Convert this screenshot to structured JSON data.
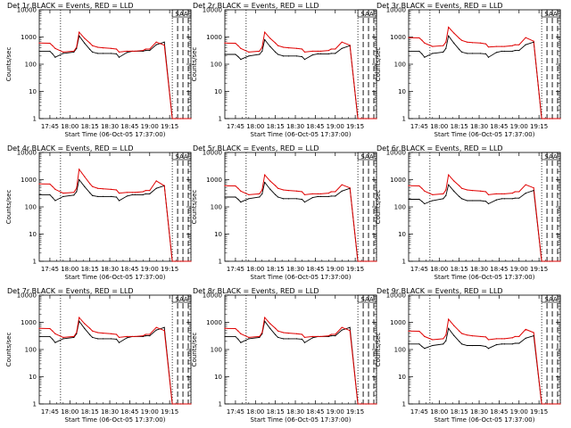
{
  "chart_data": {
    "type": "line",
    "y_scale": "log",
    "ylim": [
      1,
      10000
    ],
    "y_ticks": [
      "1",
      "10",
      "100",
      "1000",
      "10000"
    ],
    "x_ticks": [
      "17:45",
      "18:00",
      "18:15",
      "18:30",
      "18:45",
      "19:00",
      "19:15"
    ],
    "x_range_min": [
      -8,
      106
    ],
    "xlabel": "Start Time (06-Oct-05 17:37:00)",
    "ylabel": "Counts/sec",
    "annotation": "SAA",
    "colors": {
      "events": "#000000",
      "lld": "#e00000"
    },
    "series_names": [
      "Events",
      "LLD"
    ],
    "sample_x_min": [
      -8,
      0,
      2,
      4,
      10,
      18,
      20,
      22,
      26,
      30,
      32,
      36,
      40,
      46,
      50,
      52,
      58,
      62,
      64,
      70,
      72,
      75,
      80,
      86,
      92,
      94,
      96,
      98,
      100,
      106
    ],
    "panels": [
      {
        "title": "Det 1r  BLACK = Events, RED = LLD",
        "events": [
          300,
          300,
          240,
          180,
          250,
          280,
          380,
          1100,
          600,
          350,
          280,
          250,
          250,
          250,
          240,
          180,
          270,
          300,
          300,
          300,
          320,
          320,
          520,
          650,
          1,
          1,
          1,
          1,
          1,
          1
        ],
        "lld": [
          600,
          590,
          480,
          380,
          280,
          300,
          420,
          1500,
          900,
          600,
          480,
          420,
          400,
          380,
          360,
          280,
          300,
          300,
          300,
          320,
          360,
          360,
          650,
          500,
          1,
          1,
          1,
          1,
          1,
          1
        ]
      },
      {
        "title": "Det 2r  BLACK = Events, RED = LLD",
        "events": [
          230,
          230,
          190,
          150,
          200,
          230,
          300,
          800,
          450,
          280,
          230,
          200,
          200,
          200,
          190,
          150,
          220,
          240,
          240,
          240,
          250,
          250,
          380,
          480,
          1,
          1,
          1,
          1,
          1,
          1
        ],
        "lld": [
          600,
          590,
          480,
          380,
          280,
          300,
          420,
          1500,
          900,
          600,
          480,
          420,
          400,
          380,
          360,
          280,
          300,
          300,
          300,
          320,
          360,
          360,
          650,
          500,
          1,
          1,
          1,
          1,
          1,
          1
        ]
      },
      {
        "title": "Det 3r  BLACK = Events, RED = LLD",
        "events": [
          300,
          300,
          240,
          180,
          250,
          280,
          380,
          1100,
          600,
          350,
          280,
          250,
          250,
          250,
          240,
          180,
          270,
          300,
          300,
          300,
          320,
          320,
          520,
          650,
          1,
          1,
          1,
          1,
          1,
          1
        ],
        "lld": [
          950,
          930,
          760,
          600,
          450,
          480,
          650,
          2300,
          1400,
          900,
          750,
          650,
          620,
          600,
          560,
          430,
          450,
          450,
          450,
          480,
          520,
          520,
          950,
          700,
          1,
          1,
          1,
          1,
          1,
          1
        ]
      },
      {
        "title": "Det 4r  BLACK = Events, RED = LLD",
        "events": [
          280,
          280,
          220,
          170,
          240,
          270,
          360,
          1000,
          560,
          330,
          260,
          240,
          240,
          240,
          230,
          170,
          250,
          280,
          280,
          280,
          300,
          300,
          480,
          600,
          1,
          1,
          1,
          1,
          1,
          1
        ],
        "lld": [
          700,
          690,
          560,
          440,
          320,
          340,
          480,
          2400,
          1300,
          720,
          560,
          480,
          460,
          440,
          420,
          320,
          340,
          340,
          340,
          360,
          400,
          400,
          900,
          600,
          1,
          1,
          1,
          1,
          1,
          1
        ]
      },
      {
        "title": "Det 5r  BLACK = Events, RED = LLD",
        "events": [
          230,
          230,
          190,
          150,
          200,
          230,
          300,
          800,
          450,
          280,
          230,
          200,
          200,
          200,
          190,
          150,
          220,
          240,
          240,
          240,
          250,
          250,
          380,
          480,
          1,
          1,
          1,
          1,
          1,
          1
        ],
        "lld": [
          600,
          590,
          480,
          380,
          280,
          300,
          420,
          1500,
          900,
          600,
          480,
          420,
          400,
          380,
          360,
          280,
          300,
          300,
          300,
          320,
          360,
          360,
          650,
          500,
          1,
          1,
          1,
          1,
          1,
          1
        ]
      },
      {
        "title": "Det 6r  BLACK = Events, RED = LLD",
        "events": [
          190,
          190,
          160,
          130,
          170,
          200,
          260,
          650,
          380,
          240,
          200,
          170,
          170,
          170,
          160,
          130,
          180,
          200,
          200,
          200,
          210,
          210,
          320,
          400,
          1,
          1,
          1,
          1,
          1,
          1
        ],
        "lld": [
          600,
          590,
          480,
          380,
          280,
          300,
          420,
          1500,
          900,
          600,
          480,
          420,
          400,
          380,
          360,
          280,
          300,
          300,
          300,
          320,
          360,
          360,
          650,
          500,
          1,
          1,
          1,
          1,
          1,
          1
        ]
      },
      {
        "title": "Det 7r  BLACK = Events, RED = LLD",
        "events": [
          300,
          300,
          240,
          180,
          250,
          280,
          380,
          1100,
          600,
          350,
          280,
          250,
          250,
          250,
          240,
          180,
          270,
          300,
          300,
          300,
          320,
          320,
          520,
          650,
          1,
          1,
          1,
          1,
          1,
          1
        ],
        "lld": [
          600,
          590,
          480,
          380,
          280,
          300,
          420,
          1500,
          900,
          600,
          480,
          420,
          400,
          380,
          360,
          280,
          300,
          300,
          300,
          320,
          360,
          360,
          650,
          500,
          1,
          1,
          1,
          1,
          1,
          1
        ]
      },
      {
        "title": "Det 8r  BLACK = Events, RED = LLD",
        "events": [
          300,
          300,
          240,
          180,
          250,
          280,
          380,
          1100,
          600,
          350,
          280,
          250,
          250,
          250,
          240,
          180,
          270,
          300,
          300,
          300,
          320,
          320,
          520,
          650,
          1,
          1,
          1,
          1,
          1,
          1
        ],
        "lld": [
          600,
          590,
          480,
          380,
          280,
          300,
          420,
          1500,
          900,
          600,
          480,
          420,
          400,
          380,
          360,
          280,
          300,
          300,
          300,
          320,
          360,
          360,
          650,
          500,
          1,
          1,
          1,
          1,
          1,
          1
        ]
      },
      {
        "title": "Det 9r  BLACK = Events, RED = LLD",
        "events": [
          160,
          160,
          130,
          110,
          140,
          160,
          210,
          600,
          330,
          200,
          160,
          140,
          140,
          140,
          130,
          110,
          150,
          160,
          160,
          160,
          170,
          170,
          260,
          320,
          1,
          1,
          1,
          1,
          1,
          1
        ],
        "lld": [
          480,
          470,
          380,
          300,
          230,
          250,
          340,
          1300,
          760,
          480,
          390,
          340,
          320,
          300,
          290,
          230,
          250,
          250,
          250,
          270,
          300,
          300,
          550,
          420,
          1,
          1,
          1,
          1,
          1,
          1
        ]
      }
    ]
  }
}
